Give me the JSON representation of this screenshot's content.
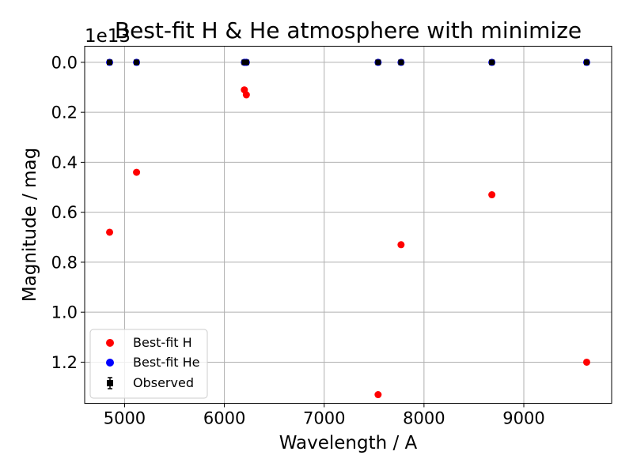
{
  "chart_data": {
    "type": "scatter",
    "title": "Best-fit H & He atmosphere with minimize",
    "xlabel": "Wavelength / A",
    "ylabel": "Magnitude / mag",
    "y_offset_label": "1e13",
    "xlim": [
      4600,
      9880
    ],
    "ylim": [
      1.3646,
      -0.0645
    ],
    "y_inverted": true,
    "y_unit_scale": 10000000000000.0,
    "grid": true,
    "legend_location": "lower-left",
    "xticks": [
      5000,
      6000,
      7000,
      8000,
      9000
    ],
    "xtick_labels": [
      "5000",
      "6000",
      "7000",
      "8000",
      "9000"
    ],
    "yticks": [
      0.0,
      0.2,
      0.4,
      0.6,
      0.8,
      1.0,
      1.2
    ],
    "ytick_labels": [
      "0.0",
      "0.2",
      "0.4",
      "0.6",
      "0.8",
      "1.0",
      "1.2"
    ],
    "series": [
      {
        "name": "Best-fit H",
        "marker": "circle",
        "color": "#ff0000",
        "x": [
          4850,
          5120,
          6200,
          6220,
          7540,
          7770,
          8680,
          9630
        ],
        "y": [
          0.68,
          0.44,
          0.11,
          0.13,
          1.33,
          0.73,
          0.53,
          1.2
        ]
      },
      {
        "name": "Best-fit He",
        "marker": "circle",
        "color": "#0000ff",
        "x": [
          4850,
          5120,
          6200,
          6220,
          7540,
          7770,
          8680,
          9630
        ],
        "y": [
          0,
          0,
          0,
          0,
          0,
          0,
          0,
          0
        ]
      },
      {
        "name": "Observed",
        "marker": "square-errorbar",
        "color": "#000000",
        "x": [
          4850,
          5120,
          6200,
          6220,
          7540,
          7770,
          8680,
          9630
        ],
        "y": [
          0,
          0,
          0,
          0,
          0,
          0,
          0,
          0
        ]
      }
    ]
  }
}
